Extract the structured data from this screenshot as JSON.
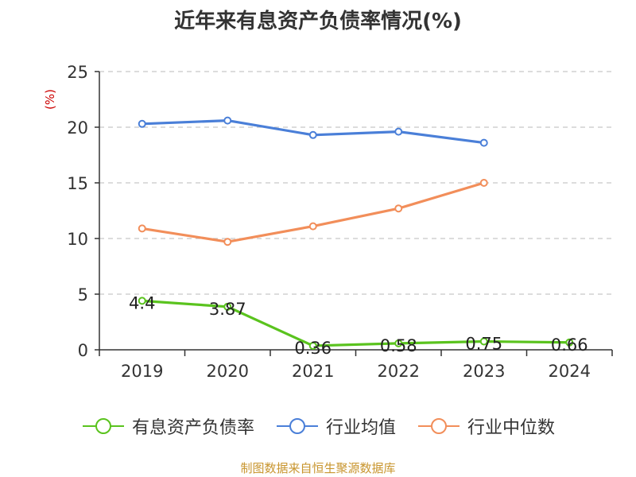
{
  "chart_data": {
    "type": "line",
    "title": "近年来有息资产负债率情况(%)",
    "ylabel": "(%)",
    "categories": [
      "2019",
      "2020",
      "2021",
      "2022",
      "2023",
      "2024"
    ],
    "ylim": [
      0,
      25
    ],
    "yticks": [
      0,
      5,
      10,
      15,
      20,
      25
    ],
    "grid": true,
    "legend_position": "bottom",
    "series": [
      {
        "name": "有息资产负债率",
        "color": "#5ac31e",
        "values": [
          4.4,
          3.87,
          0.36,
          0.58,
          0.75,
          0.66
        ],
        "data_labels": [
          "4.4",
          "3.87",
          "0.36",
          "0.58",
          "0.75",
          "0.66"
        ]
      },
      {
        "name": "行业均值",
        "color": "#4a7fd8",
        "values": [
          20.3,
          20.6,
          19.3,
          19.6,
          18.6,
          null
        ]
      },
      {
        "name": "行业中位数",
        "color": "#f28e5a",
        "values": [
          10.9,
          9.7,
          11.1,
          12.7,
          15.0,
          null
        ]
      }
    ]
  },
  "source_note": "制图数据来自恒生聚源数据库"
}
